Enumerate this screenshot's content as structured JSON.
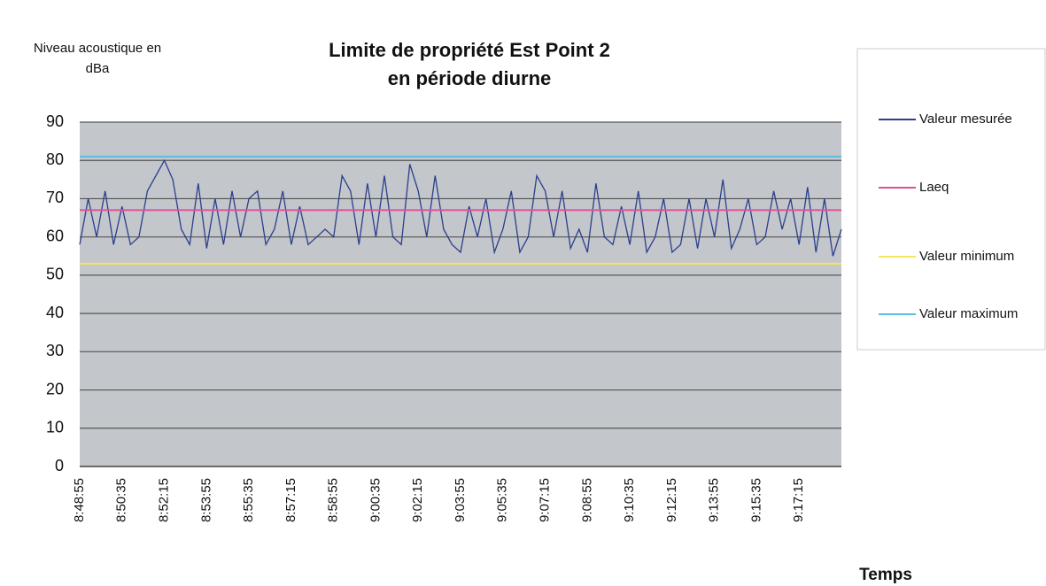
{
  "chart_data": {
    "type": "line",
    "title": [
      "Limite de propriété Est Point 2",
      "en période diurne"
    ],
    "y_label": [
      "Niveau acoustique en",
      "dBa"
    ],
    "x_label": "Temps",
    "categories": [
      "8:48:55",
      null,
      null,
      null,
      null,
      "8:50:35",
      null,
      null,
      null,
      null,
      "8:52:15",
      null,
      null,
      null,
      null,
      "8:53:55",
      null,
      null,
      null,
      null,
      "8:55:35",
      null,
      null,
      null,
      null,
      "8:57:15",
      null,
      null,
      null,
      null,
      "8:58:55",
      null,
      null,
      null,
      null,
      "9:00:35",
      null,
      null,
      null,
      null,
      "9:02:15",
      null,
      null,
      null,
      null,
      "9:03:55",
      null,
      null,
      null,
      null,
      "9:05:35",
      null,
      null,
      null,
      null,
      "9:07:15",
      null,
      null,
      null,
      null,
      "9:08:55",
      null,
      null,
      null,
      null,
      "9:10:35",
      null,
      null,
      null,
      null,
      "9:12:15",
      null,
      null,
      null,
      null,
      "9:13:55",
      null,
      null,
      null,
      null,
      "9:15:35",
      null,
      null,
      null,
      null,
      "9:17:15",
      null,
      null,
      null,
      null,
      null
    ],
    "series": [
      {
        "name": "Valeur mesurée",
        "color": "#2b3f8c",
        "values": [
          58,
          70,
          60,
          72,
          58,
          68,
          58,
          60,
          72,
          76,
          80,
          75,
          62,
          58,
          74,
          57,
          70,
          58,
          72,
          60,
          70,
          72,
          58,
          62,
          72,
          58,
          68,
          58,
          60,
          62,
          60,
          76,
          72,
          58,
          74,
          60,
          76,
          60,
          58,
          79,
          72,
          60,
          76,
          62,
          58,
          56,
          68,
          60,
          70,
          56,
          62,
          72,
          56,
          60,
          76,
          72,
          60,
          72,
          57,
          62,
          56,
          74,
          60,
          58,
          68,
          58,
          72,
          56,
          60,
          70,
          56,
          58,
          70,
          57,
          70,
          60,
          75,
          57,
          62,
          70,
          58,
          60,
          72,
          62,
          70,
          58,
          73,
          56,
          70,
          55,
          62
        ]
      },
      {
        "name": "Laeq",
        "color": "#e0509a",
        "values": [
          67,
          67,
          67,
          67,
          67,
          67,
          67,
          67,
          67,
          67,
          67,
          67,
          67,
          67,
          67,
          67,
          67,
          67,
          67,
          67,
          67,
          67,
          67,
          67,
          67,
          67,
          67,
          67,
          67,
          67,
          67,
          67,
          67,
          67,
          67,
          67,
          67,
          67,
          67,
          67,
          67,
          67,
          67,
          67,
          67,
          67,
          67,
          67,
          67,
          67,
          67,
          67,
          67,
          67,
          67,
          67,
          67,
          67,
          67,
          67,
          67,
          67,
          67,
          67,
          67,
          67,
          67,
          67,
          67,
          67,
          67,
          67,
          67,
          67,
          67,
          67,
          67,
          67,
          67,
          67,
          67,
          67,
          67,
          67,
          67,
          67,
          67,
          67,
          67,
          67,
          67
        ]
      },
      {
        "name": "Valeur minimum",
        "color": "#f2e85a",
        "values": [
          53,
          53,
          53,
          53,
          53,
          53,
          53,
          53,
          53,
          53,
          53,
          53,
          53,
          53,
          53,
          53,
          53,
          53,
          53,
          53,
          53,
          53,
          53,
          53,
          53,
          53,
          53,
          53,
          53,
          53,
          53,
          53,
          53,
          53,
          53,
          53,
          53,
          53,
          53,
          53,
          53,
          53,
          53,
          53,
          53,
          53,
          53,
          53,
          53,
          53,
          53,
          53,
          53,
          53,
          53,
          53,
          53,
          53,
          53,
          53,
          53,
          53,
          53,
          53,
          53,
          53,
          53,
          53,
          53,
          53,
          53,
          53,
          53,
          53,
          53,
          53,
          53,
          53,
          53,
          53,
          53,
          53,
          53,
          53,
          53,
          53,
          53,
          53,
          53,
          53,
          53
        ]
      },
      {
        "name": "Valeur maximum",
        "color": "#5bbde0",
        "values": [
          81,
          81,
          81,
          81,
          81,
          81,
          81,
          81,
          81,
          81,
          81,
          81,
          81,
          81,
          81,
          81,
          81,
          81,
          81,
          81,
          81,
          81,
          81,
          81,
          81,
          81,
          81,
          81,
          81,
          81,
          81,
          81,
          81,
          81,
          81,
          81,
          81,
          81,
          81,
          81,
          81,
          81,
          81,
          81,
          81,
          81,
          81,
          81,
          81,
          81,
          81,
          81,
          81,
          81,
          81,
          81,
          81,
          81,
          81,
          81,
          81,
          81,
          81,
          81,
          81,
          81,
          81,
          81,
          81,
          81,
          81,
          81,
          81,
          81,
          81,
          81,
          81,
          81,
          81,
          81,
          81,
          81,
          81,
          81,
          81,
          81,
          81,
          81,
          81,
          81,
          81
        ]
      }
    ],
    "ylim": [
      0,
      90
    ],
    "yticks": [
      0,
      10,
      20,
      30,
      40,
      50,
      60,
      70,
      80,
      90
    ],
    "grid": true,
    "legend": "right"
  }
}
